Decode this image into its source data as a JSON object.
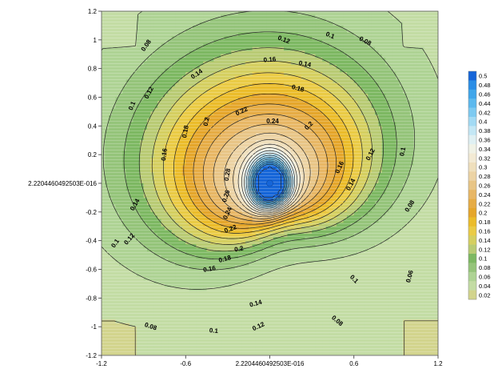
{
  "chart_data": {
    "type": "heatmap",
    "title": "",
    "xlabel": "",
    "ylabel": "",
    "xlim": [
      -1.2,
      1.2
    ],
    "ylim": [
      -1.2,
      1.2
    ],
    "x_ticks": [
      {
        "value": -1.2,
        "label": "-1.2"
      },
      {
        "value": -0.6,
        "label": "-0.6"
      },
      {
        "value": 0,
        "label": "2.2204460492503E-016"
      },
      {
        "value": 0.6,
        "label": "0.6"
      },
      {
        "value": 1.2,
        "label": "1.2"
      }
    ],
    "y_ticks": [
      {
        "value": 1.2,
        "label": "1.2"
      },
      {
        "value": 1,
        "label": "1"
      },
      {
        "value": 0.8,
        "label": "0.8"
      },
      {
        "value": 0.6,
        "label": "0.6"
      },
      {
        "value": 0.4,
        "label": "0.4"
      },
      {
        "value": 0.2,
        "label": "0.2"
      },
      {
        "value": 0,
        "label": "2.2204460492503E-016"
      },
      {
        "value": -0.2,
        "label": "-0.2"
      },
      {
        "value": -0.4,
        "label": "-0.4"
      },
      {
        "value": -0.6,
        "label": "-0.6"
      },
      {
        "value": -0.8,
        "label": "-0.8"
      },
      {
        "value": -1,
        "label": "-1"
      },
      {
        "value": -1.2,
        "label": "-1.2"
      }
    ],
    "peak": {
      "x": 0,
      "y": 0,
      "value": 0.5
    },
    "field_note_levels_min": 0.02,
    "colorbar": {
      "levels": [
        "0.5",
        "0.48",
        "0.46",
        "0.44",
        "0.42",
        "0.4",
        "0.38",
        "0.36",
        "0.34",
        "0.32",
        "0.3",
        "0.28",
        "0.26",
        "0.24",
        "0.22",
        "0.2",
        "0.18",
        "0.16",
        "0.14",
        "0.12",
        "0.1",
        "0.08",
        "0.06",
        "0.04",
        "0.02"
      ],
      "colors": [
        "#1565d8",
        "#2a8ee6",
        "#3fa6ea",
        "#5cb9ee",
        "#7dcaf1",
        "#a2daf4",
        "#c3e7f5",
        "#dff0f3",
        "#f0f2e6",
        "#f3ead4",
        "#efdfbc",
        "#ecd3a4",
        "#e8c586",
        "#e8b765",
        "#e6ac45",
        "#e5a62b",
        "#ebbc2a",
        "#eacb45",
        "#d5cf60",
        "#b9cb74",
        "#7db862",
        "#95c47a",
        "#aed394",
        "#c3dca4",
        "#d2d48d"
      ]
    },
    "contour_labels": [
      {
        "text": "0.08",
        "x": -0.88,
        "y": 0.96,
        "angle": -55
      },
      {
        "text": "0.12",
        "x": 0.1,
        "y": 1.0,
        "angle": 20
      },
      {
        "text": "0.1",
        "x": 0.43,
        "y": 1.03,
        "angle": 22
      },
      {
        "text": "0.08",
        "x": 0.68,
        "y": 0.99,
        "angle": 28
      },
      {
        "text": "0.16",
        "x": 0.0,
        "y": 0.86,
        "angle": -5
      },
      {
        "text": "0.14",
        "x": 0.25,
        "y": 0.83,
        "angle": 10
      },
      {
        "text": "0.14",
        "x": -0.52,
        "y": 0.76,
        "angle": -35
      },
      {
        "text": "0.12",
        "x": -0.86,
        "y": 0.63,
        "angle": -62
      },
      {
        "text": "0.1",
        "x": -0.98,
        "y": 0.54,
        "angle": -68
      },
      {
        "text": "0.18",
        "x": 0.2,
        "y": 0.66,
        "angle": 15
      },
      {
        "text": "0.22",
        "x": -0.2,
        "y": 0.5,
        "angle": -25
      },
      {
        "text": "0.24",
        "x": 0.02,
        "y": 0.43,
        "angle": 0
      },
      {
        "text": "0.2",
        "x": 0.28,
        "y": 0.4,
        "angle": -45
      },
      {
        "text": "0.2",
        "x": -0.45,
        "y": 0.43,
        "angle": -78
      },
      {
        "text": "0.18",
        "x": -0.6,
        "y": 0.36,
        "angle": -80
      },
      {
        "text": "0.16",
        "x": -0.75,
        "y": 0.2,
        "angle": -82
      },
      {
        "text": "0.16",
        "x": 0.5,
        "y": 0.11,
        "angle": -65
      },
      {
        "text": "0.14",
        "x": 0.58,
        "y": -0.01,
        "angle": -62
      },
      {
        "text": "0.12",
        "x": 0.72,
        "y": 0.2,
        "angle": -62
      },
      {
        "text": "0.1",
        "x": 0.95,
        "y": 0.22,
        "angle": -78
      },
      {
        "text": "0.08",
        "x": 1.0,
        "y": -0.16,
        "angle": -58
      },
      {
        "text": "0.28",
        "x": -0.3,
        "y": 0.06,
        "angle": -80
      },
      {
        "text": "0.26",
        "x": -0.31,
        "y": -0.09,
        "angle": -72
      },
      {
        "text": "0.24",
        "x": -0.3,
        "y": -0.21,
        "angle": -65
      },
      {
        "text": "0.22",
        "x": -0.28,
        "y": -0.32,
        "angle": -20
      },
      {
        "text": "0.2",
        "x": -0.22,
        "y": -0.46,
        "angle": -10
      },
      {
        "text": "0.18",
        "x": -0.32,
        "y": -0.53,
        "angle": -15
      },
      {
        "text": "0.16",
        "x": -0.43,
        "y": -0.6,
        "angle": -10
      },
      {
        "text": "0.14",
        "x": -0.96,
        "y": -0.15,
        "angle": -60
      },
      {
        "text": "0.12",
        "x": -1.0,
        "y": -0.39,
        "angle": -50
      },
      {
        "text": "0.1",
        "x": -1.1,
        "y": -0.42,
        "angle": -55
      },
      {
        "text": "0.14",
        "x": -0.1,
        "y": -0.84,
        "angle": -15
      },
      {
        "text": "0.12",
        "x": -0.08,
        "y": -1.0,
        "angle": -25
      },
      {
        "text": "0.1",
        "x": -0.4,
        "y": -1.03,
        "angle": 5
      },
      {
        "text": "0.08",
        "x": -0.85,
        "y": -1.0,
        "angle": 18
      },
      {
        "text": "0.08",
        "x": 0.48,
        "y": -0.96,
        "angle": 40
      },
      {
        "text": "0.1",
        "x": 0.6,
        "y": -0.67,
        "angle": 45
      },
      {
        "text": "0.06",
        "x": 1.0,
        "y": -0.65,
        "angle": -75
      }
    ]
  }
}
